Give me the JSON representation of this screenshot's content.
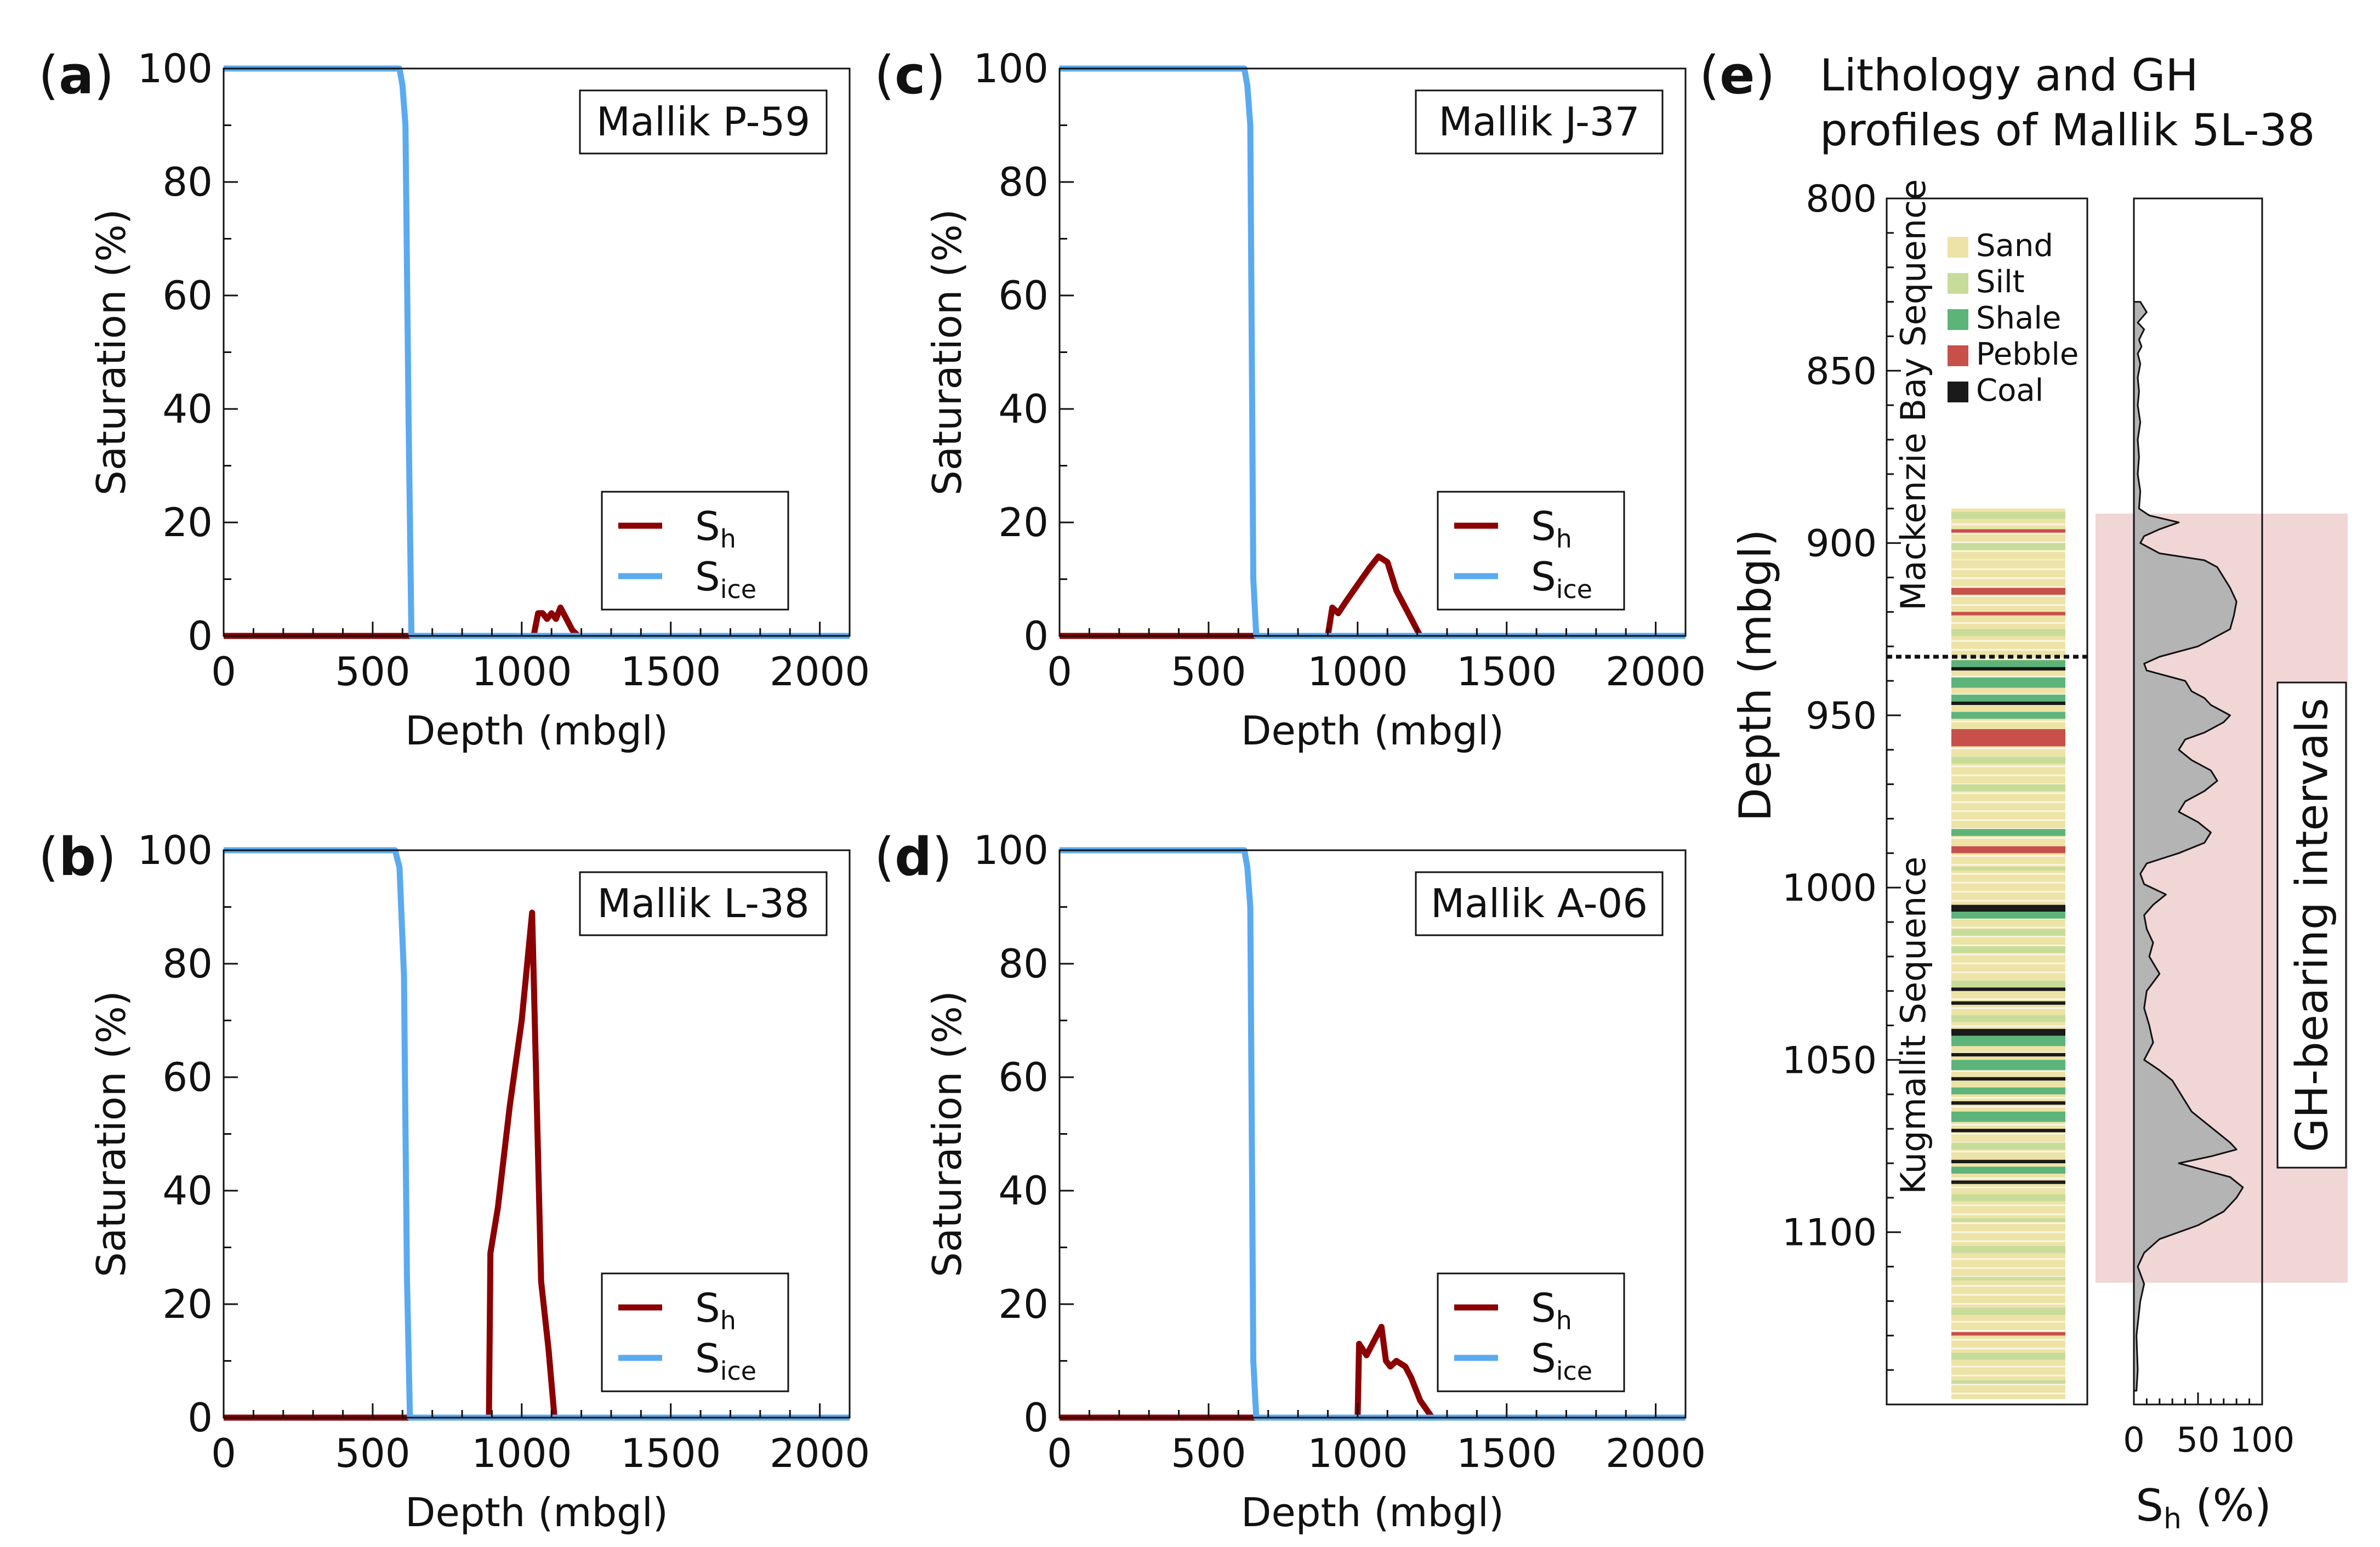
{
  "figure": {
    "panels_left": [
      {
        "letter": "a",
        "label": "Mallik P-59"
      },
      {
        "letter": "c",
        "label": "Mallik J-37"
      },
      {
        "letter": "b",
        "label": "Mallik L-38"
      },
      {
        "letter": "d",
        "label": "Mallik A-06"
      }
    ],
    "panel_e": {
      "letter": "e",
      "title_line1": "Lithology and GH",
      "title_line2": "profiles of Mallik 5L-38"
    }
  },
  "colors": {
    "sh": "#8b0000",
    "sice": "#5aaaf0",
    "sand": "#ede3a6",
    "silt": "#c8dc9a",
    "shale": "#5db47a",
    "pebble": "#c8504a",
    "coal": "#1a1a1a",
    "gh_band": "#f1d6d6",
    "profile_fill": "#b4b4b4"
  },
  "chart_data": [
    {
      "id": "a",
      "type": "line",
      "title": "Mallik P-59",
      "xlabel": "Depth (mbgl)",
      "ylabel": "Saturation (%)",
      "xlim": [
        0,
        2100
      ],
      "ylim": [
        0,
        100
      ],
      "xticks": [
        0,
        500,
        1000,
        1500,
        2000
      ],
      "yticks": [
        0,
        20,
        40,
        60,
        80,
        100
      ],
      "legend": [
        "Sh",
        "Sice"
      ],
      "legend_position": "lower-right",
      "series": [
        {
          "name": "Sice",
          "x": [
            0,
            590,
            600,
            610,
            620,
            630,
            2100
          ],
          "y": [
            100,
            100,
            97,
            90,
            40,
            0,
            0
          ]
        },
        {
          "name": "Sh",
          "x": [
            0,
            1040,
            1055,
            1070,
            1085,
            1100,
            1115,
            1130,
            1150,
            1170,
            1190,
            2100
          ],
          "y": [
            0,
            0,
            4,
            4,
            3,
            4,
            3,
            5,
            3,
            1,
            0,
            0
          ]
        }
      ]
    },
    {
      "id": "c",
      "type": "line",
      "title": "Mallik J-37",
      "xlabel": "Depth (mbgl)",
      "ylabel": "Saturation (%)",
      "xlim": [
        0,
        2100
      ],
      "ylim": [
        0,
        100
      ],
      "xticks": [
        0,
        500,
        1000,
        1500,
        2000
      ],
      "yticks": [
        0,
        20,
        40,
        60,
        80,
        100
      ],
      "legend": [
        "Sh",
        "Sice"
      ],
      "legend_position": "lower-right",
      "series": [
        {
          "name": "Sice",
          "x": [
            0,
            620,
            630,
            640,
            650,
            660,
            2100
          ],
          "y": [
            100,
            100,
            97,
            90,
            10,
            0,
            0
          ]
        },
        {
          "name": "Sh",
          "x": [
            0,
            900,
            915,
            935,
            960,
            1000,
            1040,
            1070,
            1100,
            1130,
            1170,
            1210,
            2100
          ],
          "y": [
            0,
            0,
            5,
            4,
            6,
            9,
            12,
            14,
            13,
            8,
            4,
            0,
            0
          ]
        }
      ]
    },
    {
      "id": "b",
      "type": "line",
      "title": "Mallik L-38",
      "xlabel": "Depth (mbgl)",
      "ylabel": "Saturation (%)",
      "xlim": [
        0,
        2100
      ],
      "ylim": [
        0,
        100
      ],
      "xticks": [
        0,
        500,
        1000,
        1500,
        2000
      ],
      "yticks": [
        0,
        20,
        40,
        60,
        80,
        100
      ],
      "legend": [
        "Sh",
        "Sice"
      ],
      "legend_position": "lower-right",
      "series": [
        {
          "name": "Sice",
          "x": [
            0,
            575,
            590,
            605,
            615,
            625,
            2100
          ],
          "y": [
            100,
            100,
            97,
            78,
            25,
            0,
            0
          ]
        },
        {
          "name": "Sh",
          "x": [
            0,
            890,
            895,
            920,
            960,
            1000,
            1035,
            1065,
            1090,
            1110,
            2100
          ],
          "y": [
            0,
            0,
            29,
            37,
            55,
            70,
            89,
            24,
            12,
            0,
            0
          ]
        }
      ]
    },
    {
      "id": "d",
      "type": "line",
      "title": "Mallik A-06",
      "xlabel": "Depth (mbgl)",
      "ylabel": "Saturation (%)",
      "xlim": [
        0,
        2100
      ],
      "ylim": [
        0,
        100
      ],
      "xticks": [
        0,
        500,
        1000,
        1500,
        2000
      ],
      "yticks": [
        0,
        20,
        40,
        60,
        80,
        100
      ],
      "legend": [
        "Sh",
        "Sice"
      ],
      "legend_position": "lower-right",
      "series": [
        {
          "name": "Sice",
          "x": [
            0,
            620,
            630,
            640,
            650,
            660,
            2100
          ],
          "y": [
            100,
            100,
            97,
            90,
            10,
            0,
            0
          ]
        },
        {
          "name": "Sh",
          "x": [
            0,
            1000,
            1005,
            1030,
            1060,
            1080,
            1095,
            1110,
            1130,
            1160,
            1180,
            1210,
            1250,
            2100
          ],
          "y": [
            0,
            0,
            13,
            11,
            14,
            16,
            10,
            9,
            10,
            9,
            7,
            3,
            0,
            0
          ]
        }
      ]
    },
    {
      "id": "e-lithology",
      "type": "lithology_log",
      "ylabel": "Depth (mbgl)",
      "ylim": [
        800,
        1150
      ],
      "yticks": [
        800,
        850,
        900,
        950,
        1000,
        1050,
        1100
      ],
      "legend": [
        "Sand",
        "Silt",
        "Shale",
        "Pebble",
        "Coal"
      ],
      "sequences": [
        {
          "name": "Mackenzie Bay Sequence",
          "top": 800,
          "base": 933
        },
        {
          "name": "Kugmallit Sequence",
          "top": 933,
          "base": 1150
        }
      ],
      "sequence_boundary": 933,
      "log_top": 890,
      "background": "Sand",
      "beds": [
        {
          "top": 891,
          "base": 893,
          "lith": "Silt"
        },
        {
          "top": 896,
          "base": 897,
          "lith": "Pebble"
        },
        {
          "top": 900,
          "base": 902,
          "lith": "Silt"
        },
        {
          "top": 905,
          "base": 906,
          "lith": "Sand"
        },
        {
          "top": 913,
          "base": 915,
          "lith": "Pebble"
        },
        {
          "top": 920,
          "base": 921,
          "lith": "Pebble"
        },
        {
          "top": 925,
          "base": 927,
          "lith": "Silt"
        },
        {
          "top": 934,
          "base": 936,
          "lith": "Shale"
        },
        {
          "top": 936,
          "base": 937,
          "lith": "Coal"
        },
        {
          "top": 939,
          "base": 942,
          "lith": "Shale"
        },
        {
          "top": 944,
          "base": 946,
          "lith": "Shale"
        },
        {
          "top": 946,
          "base": 947,
          "lith": "Coal"
        },
        {
          "top": 949,
          "base": 951,
          "lith": "Shale"
        },
        {
          "top": 954,
          "base": 959,
          "lith": "Pebble"
        },
        {
          "top": 962,
          "base": 964,
          "lith": "Silt"
        },
        {
          "top": 970,
          "base": 972,
          "lith": "Silt"
        },
        {
          "top": 983,
          "base": 985,
          "lith": "Shale"
        },
        {
          "top": 988,
          "base": 990,
          "lith": "Pebble"
        },
        {
          "top": 994,
          "base": 995,
          "lith": "Silt"
        },
        {
          "top": 1005,
          "base": 1007,
          "lith": "Coal"
        },
        {
          "top": 1007,
          "base": 1009,
          "lith": "Shale"
        },
        {
          "top": 1012,
          "base": 1014,
          "lith": "Silt"
        },
        {
          "top": 1017,
          "base": 1019,
          "lith": "Silt"
        },
        {
          "top": 1027,
          "base": 1029,
          "lith": "Silt"
        },
        {
          "top": 1029,
          "base": 1030,
          "lith": "Coal"
        },
        {
          "top": 1033,
          "base": 1034,
          "lith": "Coal"
        },
        {
          "top": 1037,
          "base": 1039,
          "lith": "Silt"
        },
        {
          "top": 1041,
          "base": 1043,
          "lith": "Coal"
        },
        {
          "top": 1043,
          "base": 1046,
          "lith": "Shale"
        },
        {
          "top": 1048,
          "base": 1049,
          "lith": "Coal"
        },
        {
          "top": 1050,
          "base": 1053,
          "lith": "Shale"
        },
        {
          "top": 1055,
          "base": 1056,
          "lith": "Coal"
        },
        {
          "top": 1058,
          "base": 1060,
          "lith": "Shale"
        },
        {
          "top": 1062,
          "base": 1063,
          "lith": "Coal"
        },
        {
          "top": 1065,
          "base": 1068,
          "lith": "Shale"
        },
        {
          "top": 1070,
          "base": 1071,
          "lith": "Coal"
        },
        {
          "top": 1074,
          "base": 1076,
          "lith": "Silt"
        },
        {
          "top": 1079,
          "base": 1080,
          "lith": "Coal"
        },
        {
          "top": 1081,
          "base": 1083,
          "lith": "Shale"
        },
        {
          "top": 1085,
          "base": 1086,
          "lith": "Coal"
        },
        {
          "top": 1089,
          "base": 1091,
          "lith": "Silt"
        },
        {
          "top": 1096,
          "base": 1097,
          "lith": "Silt"
        },
        {
          "top": 1104,
          "base": 1106,
          "lith": "Silt"
        },
        {
          "top": 1113,
          "base": 1114,
          "lith": "Silt"
        },
        {
          "top": 1122,
          "base": 1124,
          "lith": "Silt"
        },
        {
          "top": 1129,
          "base": 1130,
          "lith": "Pebble"
        },
        {
          "top": 1135,
          "base": 1137,
          "lith": "Silt"
        },
        {
          "top": 1143,
          "base": 1144,
          "lith": "Silt"
        }
      ]
    },
    {
      "id": "e-profile",
      "type": "area",
      "xlabel": "Sh (%)",
      "xlim": [
        0,
        100
      ],
      "xticks": [
        0,
        50,
        100
      ],
      "ylim": [
        800,
        1150
      ],
      "gh_band": [
        890,
        1112
      ],
      "band_label": "GH-bearing intervals",
      "depth": [
        830,
        833,
        836,
        838,
        841,
        843,
        845,
        848,
        852,
        856,
        860,
        865,
        870,
        875,
        880,
        885,
        890,
        892,
        894,
        896,
        898,
        900,
        903,
        905,
        907,
        910,
        913,
        917,
        921,
        925,
        930,
        933,
        935,
        937,
        940,
        943,
        945,
        947,
        950,
        952,
        955,
        957,
        960,
        963,
        966,
        969,
        972,
        975,
        978,
        981,
        984,
        987,
        990,
        993,
        996,
        999,
        1002,
        1005,
        1008,
        1012,
        1016,
        1020,
        1025,
        1030,
        1035,
        1040,
        1045,
        1050,
        1053,
        1056,
        1059,
        1062,
        1065,
        1068,
        1071,
        1074,
        1076,
        1078,
        1080,
        1082,
        1084,
        1087,
        1090,
        1094,
        1098,
        1102,
        1106,
        1110,
        1115,
        1120,
        1130,
        1140,
        1146
      ],
      "sh": [
        5,
        10,
        3,
        8,
        4,
        6,
        3,
        5,
        3,
        4,
        3,
        5,
        3,
        4,
        3,
        5,
        4,
        12,
        35,
        20,
        8,
        5,
        20,
        55,
        65,
        70,
        75,
        80,
        78,
        75,
        50,
        20,
        8,
        10,
        40,
        45,
        55,
        60,
        75,
        70,
        55,
        40,
        35,
        45,
        60,
        65,
        55,
        40,
        35,
        50,
        60,
        55,
        35,
        10,
        5,
        8,
        25,
        15,
        8,
        10,
        15,
        12,
        20,
        10,
        8,
        12,
        15,
        8,
        20,
        30,
        35,
        40,
        45,
        55,
        65,
        75,
        80,
        60,
        35,
        55,
        75,
        85,
        80,
        70,
        50,
        20,
        8,
        3,
        8,
        5,
        2,
        3,
        2
      ]
    }
  ]
}
